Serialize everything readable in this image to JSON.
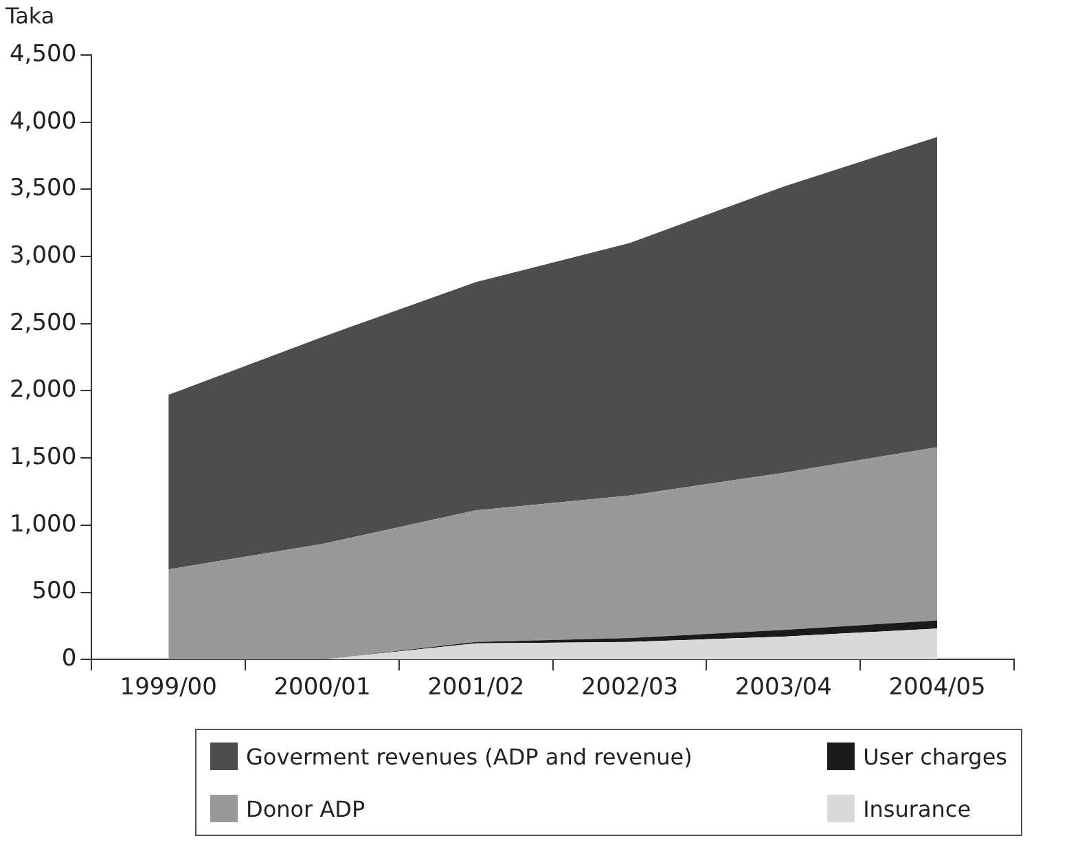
{
  "chart_data": {
    "type": "area",
    "stacked": true,
    "ylabel": "Taka",
    "categories": [
      "1999/00",
      "2000/01",
      "2001/02",
      "2002/03",
      "2003/04",
      "2004/05"
    ],
    "series": [
      {
        "name": "Insurance",
        "color": "#d9d9d9",
        "values": [
          0,
          0,
          120,
          130,
          170,
          230
        ]
      },
      {
        "name": "User charges",
        "color": "#1a1a1a",
        "values": [
          0,
          0,
          10,
          30,
          50,
          60
        ]
      },
      {
        "name": "Donor ADP",
        "color": "#999999",
        "values": [
          670,
          860,
          980,
          1060,
          1170,
          1290
        ]
      },
      {
        "name": "Goverment revenues (ADP and revenue)",
        "color": "#4d4d4d",
        "values": [
          1300,
          1540,
          1700,
          1880,
          2130,
          2310
        ]
      }
    ],
    "ylim": [
      0,
      4500
    ],
    "yticks": [
      0,
      500,
      {
        "value": 1000,
        "label": "1,000"
      },
      {
        "value": 1500,
        "label": "1,500"
      },
      {
        "value": 2000,
        "label": "2,000"
      },
      {
        "value": 2500,
        "label": "2,500"
      },
      {
        "value": 3000,
        "label": "3,000"
      },
      {
        "value": 3500,
        "label": "3,500"
      },
      {
        "value": 4000,
        "label": "4,000"
      },
      {
        "value": 4500,
        "label": "4,500"
      }
    ],
    "grid": false,
    "legend": "bottom"
  }
}
